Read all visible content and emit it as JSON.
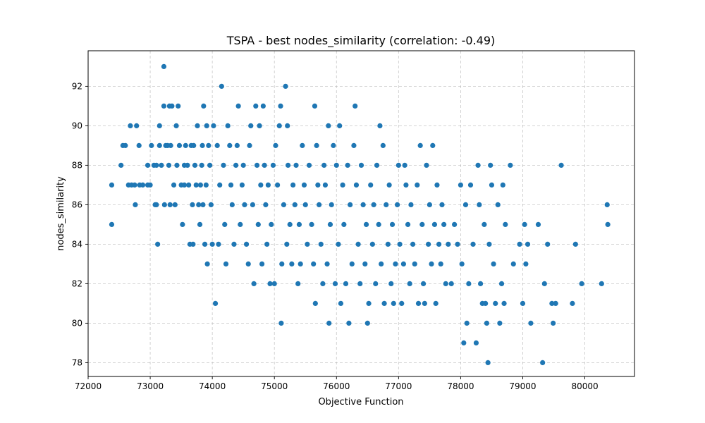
{
  "chart_data": {
    "type": "scatter",
    "title": "TSPA - best nodes_similarity (correlation: -0.49)",
    "xlabel": "Objective Function",
    "ylabel": "nodes_similarity",
    "xlim": [
      72000,
      80800
    ],
    "ylim": [
      77.3,
      93.8
    ],
    "xticks": [
      72000,
      73000,
      74000,
      75000,
      76000,
      77000,
      78000,
      79000,
      80000
    ],
    "yticks": [
      78,
      80,
      82,
      84,
      86,
      88,
      90,
      92
    ],
    "grid": true,
    "marker_color": "#1f77b4",
    "series": [
      {
        "points": [
          [
            72380,
            87
          ],
          [
            72380,
            85
          ],
          [
            72530,
            88
          ],
          [
            72560,
            89
          ],
          [
            72600,
            89
          ],
          [
            72650,
            87
          ],
          [
            72680,
            90
          ],
          [
            72700,
            87
          ],
          [
            72750,
            87
          ],
          [
            72760,
            86
          ],
          [
            72780,
            90
          ],
          [
            72820,
            89
          ],
          [
            72830,
            87
          ],
          [
            72880,
            87
          ],
          [
            72960,
            88
          ],
          [
            72960,
            87
          ],
          [
            73000,
            87
          ],
          [
            73020,
            89
          ],
          [
            73060,
            88
          ],
          [
            73080,
            86
          ],
          [
            73100,
            88
          ],
          [
            73100,
            86
          ],
          [
            73120,
            84
          ],
          [
            73150,
            90
          ],
          [
            73150,
            89
          ],
          [
            73180,
            88
          ],
          [
            73220,
            93
          ],
          [
            73220,
            91
          ],
          [
            73230,
            86
          ],
          [
            73250,
            89
          ],
          [
            73280,
            89
          ],
          [
            73300,
            88
          ],
          [
            73310,
            91
          ],
          [
            73320,
            86
          ],
          [
            73330,
            89
          ],
          [
            73350,
            91
          ],
          [
            73380,
            87
          ],
          [
            73400,
            86
          ],
          [
            73420,
            90
          ],
          [
            73430,
            88
          ],
          [
            73450,
            91
          ],
          [
            73470,
            89
          ],
          [
            73500,
            87
          ],
          [
            73520,
            85
          ],
          [
            73550,
            87
          ],
          [
            73550,
            88
          ],
          [
            73570,
            89
          ],
          [
            73600,
            88
          ],
          [
            73620,
            87
          ],
          [
            73640,
            84
          ],
          [
            73660,
            89
          ],
          [
            73680,
            86
          ],
          [
            73690,
            84
          ],
          [
            73700,
            89
          ],
          [
            73720,
            88
          ],
          [
            73740,
            87
          ],
          [
            73760,
            90
          ],
          [
            73780,
            86
          ],
          [
            73800,
            85
          ],
          [
            73810,
            87
          ],
          [
            73830,
            88
          ],
          [
            73840,
            89
          ],
          [
            73850,
            86
          ],
          [
            73860,
            91
          ],
          [
            73880,
            84
          ],
          [
            73900,
            87
          ],
          [
            73910,
            90
          ],
          [
            73920,
            83
          ],
          [
            73940,
            89
          ],
          [
            73960,
            88
          ],
          [
            73980,
            86
          ],
          [
            74000,
            84
          ],
          [
            74020,
            90
          ],
          [
            74050,
            81
          ],
          [
            74080,
            89
          ],
          [
            74100,
            84
          ],
          [
            74120,
            87
          ],
          [
            74150,
            92
          ],
          [
            74180,
            88
          ],
          [
            74200,
            85
          ],
          [
            74220,
            83
          ],
          [
            74250,
            90
          ],
          [
            74280,
            89
          ],
          [
            74300,
            87
          ],
          [
            74320,
            86
          ],
          [
            74350,
            84
          ],
          [
            74380,
            88
          ],
          [
            74400,
            89
          ],
          [
            74420,
            91
          ],
          [
            74450,
            85
          ],
          [
            74480,
            87
          ],
          [
            74500,
            88
          ],
          [
            74520,
            86
          ],
          [
            74550,
            84
          ],
          [
            74580,
            83
          ],
          [
            74600,
            89
          ],
          [
            74620,
            90
          ],
          [
            74650,
            86
          ],
          [
            74670,
            82
          ],
          [
            74700,
            91
          ],
          [
            74720,
            88
          ],
          [
            74740,
            85
          ],
          [
            74760,
            90
          ],
          [
            74780,
            87
          ],
          [
            74800,
            83
          ],
          [
            74820,
            91
          ],
          [
            74840,
            88
          ],
          [
            74860,
            86
          ],
          [
            74880,
            84
          ],
          [
            74900,
            87
          ],
          [
            74930,
            82
          ],
          [
            74950,
            85
          ],
          [
            74980,
            88
          ],
          [
            75000,
            82
          ],
          [
            75020,
            89
          ],
          [
            75050,
            87
          ],
          [
            75080,
            90
          ],
          [
            75100,
            91
          ],
          [
            75110,
            80
          ],
          [
            75120,
            83
          ],
          [
            75150,
            86
          ],
          [
            75180,
            92
          ],
          [
            75200,
            84
          ],
          [
            75210,
            90
          ],
          [
            75220,
            88
          ],
          [
            75250,
            85
          ],
          [
            75280,
            83
          ],
          [
            75300,
            87
          ],
          [
            75330,
            86
          ],
          [
            75350,
            88
          ],
          [
            75380,
            82
          ],
          [
            75400,
            85
          ],
          [
            75420,
            83
          ],
          [
            75450,
            89
          ],
          [
            75480,
            87
          ],
          [
            75500,
            86
          ],
          [
            75530,
            84
          ],
          [
            75560,
            88
          ],
          [
            75600,
            85
          ],
          [
            75630,
            83
          ],
          [
            75650,
            91
          ],
          [
            75660,
            81
          ],
          [
            75680,
            89
          ],
          [
            75700,
            87
          ],
          [
            75720,
            86
          ],
          [
            75750,
            84
          ],
          [
            75780,
            82
          ],
          [
            75800,
            88
          ],
          [
            75820,
            87
          ],
          [
            75850,
            83
          ],
          [
            75870,
            90
          ],
          [
            75880,
            80
          ],
          [
            75900,
            85
          ],
          [
            75920,
            86
          ],
          [
            75950,
            89
          ],
          [
            75980,
            82
          ],
          [
            76000,
            88
          ],
          [
            76030,
            84
          ],
          [
            76050,
            90
          ],
          [
            76070,
            81
          ],
          [
            76100,
            87
          ],
          [
            76120,
            85
          ],
          [
            76150,
            82
          ],
          [
            76180,
            88
          ],
          [
            76200,
            80
          ],
          [
            76220,
            86
          ],
          [
            76250,
            83
          ],
          [
            76280,
            89
          ],
          [
            76300,
            91
          ],
          [
            76320,
            87
          ],
          [
            76350,
            84
          ],
          [
            76380,
            82
          ],
          [
            76400,
            88
          ],
          [
            76430,
            86
          ],
          [
            76460,
            83
          ],
          [
            76480,
            85
          ],
          [
            76500,
            80
          ],
          [
            76520,
            81
          ],
          [
            76550,
            87
          ],
          [
            76580,
            84
          ],
          [
            76600,
            86
          ],
          [
            76630,
            82
          ],
          [
            76650,
            88
          ],
          [
            76680,
            85
          ],
          [
            76700,
            90
          ],
          [
            76720,
            83
          ],
          [
            76750,
            89
          ],
          [
            76770,
            81
          ],
          [
            76800,
            86
          ],
          [
            76830,
            84
          ],
          [
            76850,
            87
          ],
          [
            76880,
            82
          ],
          [
            76900,
            85
          ],
          [
            76920,
            81
          ],
          [
            76950,
            83
          ],
          [
            76980,
            86
          ],
          [
            77000,
            88
          ],
          [
            77020,
            84
          ],
          [
            77050,
            81
          ],
          [
            77080,
            83
          ],
          [
            77100,
            88
          ],
          [
            77120,
            87
          ],
          [
            77150,
            85
          ],
          [
            77180,
            82
          ],
          [
            77200,
            86
          ],
          [
            77230,
            84
          ],
          [
            77260,
            83
          ],
          [
            77300,
            87
          ],
          [
            77320,
            81
          ],
          [
            77350,
            89
          ],
          [
            77380,
            85
          ],
          [
            77400,
            82
          ],
          [
            77420,
            81
          ],
          [
            77450,
            88
          ],
          [
            77480,
            84
          ],
          [
            77500,
            86
          ],
          [
            77530,
            83
          ],
          [
            77550,
            89
          ],
          [
            77580,
            85
          ],
          [
            77600,
            81
          ],
          [
            77620,
            87
          ],
          [
            77650,
            84
          ],
          [
            77680,
            83
          ],
          [
            77700,
            86
          ],
          [
            77730,
            85
          ],
          [
            77760,
            82
          ],
          [
            77800,
            84
          ],
          [
            77850,
            82
          ],
          [
            77900,
            85
          ],
          [
            77950,
            84
          ],
          [
            78000,
            87
          ],
          [
            78020,
            83
          ],
          [
            78050,
            79
          ],
          [
            78080,
            86
          ],
          [
            78100,
            80
          ],
          [
            78130,
            82
          ],
          [
            78160,
            87
          ],
          [
            78200,
            84
          ],
          [
            78250,
            79
          ],
          [
            78280,
            88
          ],
          [
            78300,
            86
          ],
          [
            78320,
            82
          ],
          [
            78350,
            81
          ],
          [
            78380,
            85
          ],
          [
            78400,
            81
          ],
          [
            78420,
            80
          ],
          [
            78440,
            78
          ],
          [
            78460,
            84
          ],
          [
            78480,
            88
          ],
          [
            78500,
            87
          ],
          [
            78530,
            83
          ],
          [
            78560,
            81
          ],
          [
            78600,
            86
          ],
          [
            78630,
            80
          ],
          [
            78660,
            82
          ],
          [
            78680,
            87
          ],
          [
            78700,
            81
          ],
          [
            78720,
            85
          ],
          [
            78800,
            88
          ],
          [
            78850,
            83
          ],
          [
            78950,
            84
          ],
          [
            79000,
            81
          ],
          [
            79030,
            85
          ],
          [
            79050,
            83
          ],
          [
            79080,
            84
          ],
          [
            79130,
            80
          ],
          [
            79250,
            85
          ],
          [
            79320,
            78
          ],
          [
            79350,
            82
          ],
          [
            79400,
            84
          ],
          [
            79470,
            81
          ],
          [
            79490,
            80
          ],
          [
            79530,
            81
          ],
          [
            79620,
            88
          ],
          [
            79800,
            81
          ],
          [
            79850,
            84
          ],
          [
            79950,
            82
          ],
          [
            80270,
            82
          ],
          [
            80360,
            86
          ],
          [
            80370,
            85
          ]
        ]
      }
    ]
  }
}
